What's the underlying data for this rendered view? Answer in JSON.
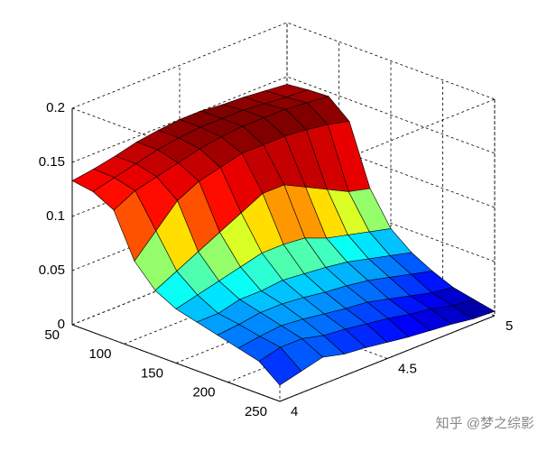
{
  "chart_data": {
    "type": "surface",
    "x": [
      50,
      70,
      90,
      110,
      130,
      150,
      170,
      190,
      210,
      230,
      250
    ],
    "y": [
      4,
      4.1,
      4.2,
      4.3,
      4.4,
      4.5,
      4.6,
      4.7,
      4.8,
      4.9,
      5
    ],
    "z": [
      [
        0.133,
        0.136,
        0.14,
        0.145,
        0.148,
        0.15,
        0.15,
        0.148,
        0.147,
        0.145,
        0.143
      ],
      [
        0.13,
        0.135,
        0.14,
        0.145,
        0.148,
        0.15,
        0.15,
        0.15,
        0.148,
        0.146,
        0.145
      ],
      [
        0.12,
        0.13,
        0.135,
        0.14,
        0.145,
        0.148,
        0.15,
        0.15,
        0.15,
        0.148,
        0.146
      ],
      [
        0.08,
        0.1,
        0.12,
        0.13,
        0.135,
        0.14,
        0.14,
        0.14,
        0.138,
        0.135,
        0.13
      ],
      [
        0.06,
        0.07,
        0.08,
        0.09,
        0.1,
        0.11,
        0.11,
        0.1,
        0.09,
        0.08,
        0.075
      ],
      [
        0.05,
        0.055,
        0.06,
        0.065,
        0.07,
        0.07,
        0.068,
        0.06,
        0.055,
        0.05,
        0.045
      ],
      [
        0.045,
        0.045,
        0.05,
        0.05,
        0.052,
        0.05,
        0.048,
        0.045,
        0.04,
        0.035,
        0.03
      ],
      [
        0.04,
        0.042,
        0.045,
        0.045,
        0.043,
        0.04,
        0.038,
        0.035,
        0.03,
        0.025,
        0.02
      ],
      [
        0.035,
        0.038,
        0.04,
        0.038,
        0.035,
        0.032,
        0.03,
        0.025,
        0.02,
        0.015,
        0.012
      ],
      [
        0.03,
        0.035,
        0.035,
        0.03,
        0.028,
        0.025,
        0.022,
        0.018,
        0.015,
        0.01,
        0.008
      ],
      [
        0.015,
        0.02,
        0.025,
        0.02,
        0.018,
        0.015,
        0.012,
        0.01,
        0.008,
        0.005,
        0.004
      ]
    ],
    "colormap": "jet",
    "xlim": [
      50,
      250
    ],
    "ylim": [
      4,
      5
    ],
    "zlim": [
      0,
      0.2
    ],
    "xticks": [
      50,
      100,
      150,
      200,
      250
    ],
    "yticks": [
      4,
      4.5,
      5
    ],
    "zticks": [
      0,
      0.05,
      0.1,
      0.15,
      0.2
    ],
    "grid": true
  },
  "watermark": "知乎 @梦之综影"
}
